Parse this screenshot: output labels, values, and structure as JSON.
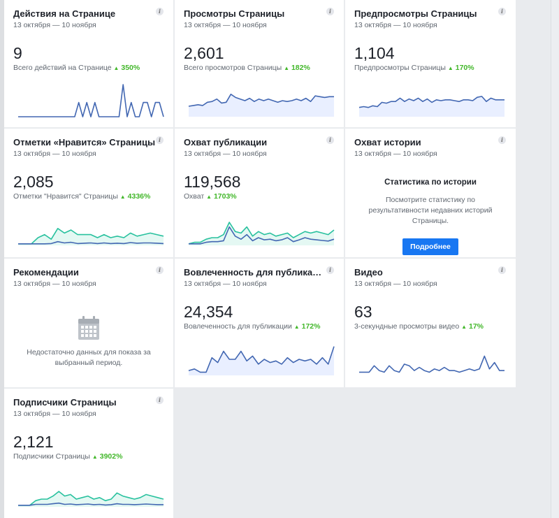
{
  "cards": {
    "actions": {
      "title": "Действия на Странице",
      "date": "13 октября — 10 ноября",
      "value": "9",
      "label": "Всего действий на Странице",
      "change": "350%",
      "series": [
        0,
        0,
        0,
        0,
        0,
        0,
        0,
        0,
        0,
        0,
        0,
        0,
        0,
        0,
        0,
        4,
        0,
        4,
        0,
        4,
        0,
        0,
        0,
        0,
        0,
        0,
        9,
        0,
        4,
        0,
        0,
        4,
        4,
        0,
        4,
        4,
        0
      ],
      "series_max": 9
    },
    "views": {
      "title": "Просмотры Страницы",
      "date": "13 октября — 10 ноября",
      "value": "2,601",
      "label": "Всего просмотров Страницы",
      "change": "182%",
      "series": [
        65,
        70,
        75,
        70,
        90,
        95,
        110,
        85,
        90,
        140,
        120,
        110,
        100,
        115,
        95,
        110,
        100,
        110,
        100,
        90,
        100,
        95,
        100,
        110,
        100,
        115,
        95,
        130,
        125,
        120,
        125,
        125
      ],
      "series_max": 200
    },
    "previews": {
      "title": "Предпросмотры Страницы",
      "date": "13 октября — 10 ноября",
      "value": "1,104",
      "label": "Предпросмотры Страницы",
      "change": "170%",
      "series": [
        55,
        60,
        55,
        65,
        60,
        85,
        80,
        90,
        90,
        110,
        90,
        105,
        95,
        110,
        90,
        105,
        85,
        100,
        95,
        100,
        100,
        95,
        90,
        100,
        100,
        95,
        115,
        120,
        90,
        110,
        100,
        100,
        100
      ],
      "series_max": 190
    },
    "likes": {
      "title": "Отметки «Нравится» Страницы",
      "date": "13 октября — 10 ноября",
      "value": "2,085",
      "label": "Отметки \"Нравится\" Страницы",
      "change": "4336%",
      "series": [
        5,
        5,
        5,
        25,
        35,
        20,
        55,
        40,
        50,
        35,
        35,
        35,
        25,
        35,
        25,
        30,
        25,
        40,
        30,
        35,
        40,
        35,
        30
      ],
      "series2": [
        5,
        5,
        5,
        5,
        5,
        6,
        12,
        8,
        10,
        6,
        7,
        8,
        6,
        8,
        6,
        7,
        6,
        9,
        7,
        8,
        8,
        7,
        6
      ],
      "series_max": 100
    },
    "reach": {
      "title": "Охват публикации",
      "date": "13 октября — 10 ноября",
      "value": "119,568",
      "label": "Охват",
      "change": "1703%",
      "series": [
        5,
        10,
        10,
        20,
        25,
        25,
        35,
        75,
        45,
        40,
        60,
        30,
        45,
        35,
        40,
        30,
        35,
        40,
        25,
        35,
        45,
        40,
        45,
        40,
        35,
        50
      ],
      "series2": [
        5,
        5,
        5,
        10,
        12,
        12,
        15,
        60,
        30,
        20,
        35,
        15,
        25,
        18,
        20,
        15,
        18,
        25,
        12,
        18,
        25,
        20,
        18,
        16,
        14,
        20
      ],
      "series_max": 100
    },
    "story": {
      "title": "Охват истории",
      "date": "13 октября — 10 ноября",
      "stat_title": "Статистика по истории",
      "desc": "Посмотрите статистику по результативности недавних историй Страницы.",
      "button": "Подробнее"
    },
    "recommendations": {
      "title": "Рекомендации",
      "date": "13 октября — 10 ноября",
      "empty_text": "Недостаточно данных для показа за выбранный период."
    },
    "engagement": {
      "title": "Вовлеченность для публикаци...",
      "date": "13 октября — 10 ноября",
      "value": "24,354",
      "label": "Вовлеченность для публикации",
      "change": "172%",
      "series": [
        15,
        20,
        10,
        10,
        55,
        40,
        75,
        50,
        50,
        75,
        45,
        60,
        35,
        50,
        40,
        45,
        35,
        55,
        40,
        50,
        45,
        50,
        35,
        55,
        35,
        90
      ],
      "series_max": 100
    },
    "video": {
      "title": "Видео",
      "date": "13 октября — 10 ноября",
      "value": "63",
      "label": "3-секундные просмотры видео",
      "change": "17%",
      "series": [
        2,
        2,
        2,
        6,
        3,
        2,
        6,
        3,
        2,
        7,
        6,
        3,
        5,
        3,
        2,
        4,
        3,
        5,
        3,
        3,
        2,
        3,
        4,
        3,
        4,
        12,
        4,
        8,
        3,
        3
      ],
      "series_max": 20
    },
    "followers": {
      "title": "Подписчики Страницы",
      "date": "13 октября — 10 ноября",
      "value": "2,121",
      "label": "Подписчики Страницы",
      "change": "3902%",
      "series": [
        5,
        5,
        5,
        20,
        25,
        25,
        35,
        50,
        35,
        40,
        25,
        30,
        35,
        25,
        30,
        20,
        25,
        45,
        35,
        30,
        25,
        30,
        40,
        35,
        30,
        25
      ],
      "series2": [
        5,
        5,
        5,
        8,
        8,
        8,
        10,
        12,
        8,
        9,
        7,
        8,
        9,
        7,
        8,
        6,
        7,
        10,
        8,
        8,
        7,
        8,
        9,
        8,
        7,
        7
      ],
      "series_max": 100
    }
  },
  "colors": {
    "blue": "#4267b2",
    "teal": "#28c19e",
    "fill_blue": "#e9efff",
    "fill_teal": "#e4f8f3"
  }
}
